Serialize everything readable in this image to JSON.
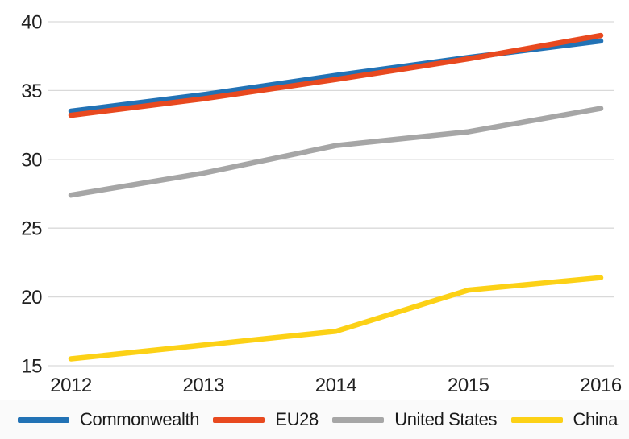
{
  "chart_data": {
    "type": "line",
    "categories": [
      "2012",
      "2013",
      "2014",
      "2015",
      "2016"
    ],
    "series": [
      {
        "name": "Commonwealth",
        "color": "#2272B5",
        "values": [
          33.5,
          34.7,
          36.1,
          37.4,
          38.6
        ]
      },
      {
        "name": "EU28",
        "color": "#E8491F",
        "values": [
          33.2,
          34.4,
          35.8,
          37.3,
          39.0
        ]
      },
      {
        "name": "United States",
        "color": "#A6A6A6",
        "values": [
          27.4,
          29.0,
          31.0,
          32.0,
          33.7
        ]
      },
      {
        "name": "China",
        "color": "#FCD116",
        "values": [
          15.5,
          16.5,
          17.5,
          20.5,
          21.4
        ]
      }
    ],
    "ylim": [
      15,
      40
    ],
    "yticks": [
      15,
      20,
      25,
      30,
      35,
      40
    ],
    "grid": true,
    "grid_color": "#D9D9D9",
    "axis_text_color": "#212121",
    "legend_position": "bottom",
    "line_width": 6.5
  }
}
